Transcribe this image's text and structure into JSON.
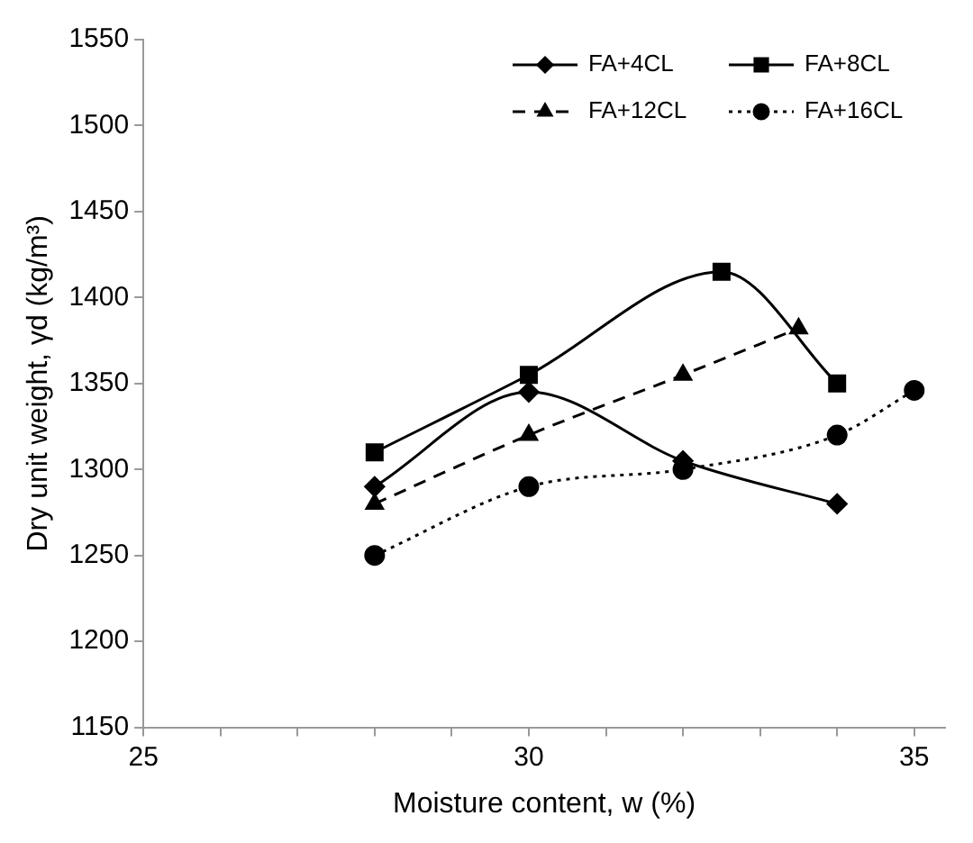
{
  "chart_data": {
    "type": "line",
    "xlabel": "Moisture content, w (%)",
    "ylabel": "Dry unit weight, γd (kg/m³)",
    "xlim": [
      25,
      35.4
    ],
    "xticks": [
      25,
      {
        "value": 26,
        "label": null
      },
      {
        "value": 27,
        "label": null
      },
      {
        "value": 28,
        "label": null
      },
      {
        "value": 29,
        "label": null
      },
      30,
      {
        "value": 31,
        "label": null
      },
      {
        "value": 32,
        "label": null
      },
      {
        "value": 33,
        "label": null
      },
      {
        "value": 34,
        "label": null
      },
      35
    ],
    "ylim": [
      1150,
      1550
    ],
    "yticks": [
      1150,
      1200,
      1250,
      1300,
      1350,
      1400,
      1450,
      1500,
      1550
    ],
    "grid": false,
    "legend": "top right",
    "series": [
      {
        "name": "FA+4CL",
        "color": "#000000",
        "marker": "diamond",
        "line_style": "solid",
        "x": [
          28,
          30,
          32,
          34
        ],
        "values": [
          1290,
          1345,
          1305,
          1280
        ]
      },
      {
        "name": "FA+8CL",
        "color": "#000000",
        "marker": "square",
        "line_style": "solid",
        "x": [
          28,
          30,
          32.5,
          34
        ],
        "values": [
          1310,
          1355,
          1415,
          1350
        ]
      },
      {
        "name": "FA+12CL",
        "color": "#000000",
        "marker": "triangle",
        "line_style": "dashed",
        "x": [
          28,
          30,
          32,
          33.5
        ],
        "values": [
          1280,
          1320,
          1355,
          1382
        ]
      },
      {
        "name": "FA+16CL",
        "color": "#000000",
        "marker": "circle",
        "line_style": "dotted",
        "x": [
          28,
          30,
          32,
          34,
          35
        ],
        "values": [
          1250,
          1290,
          1300,
          1320,
          1346
        ]
      }
    ]
  }
}
